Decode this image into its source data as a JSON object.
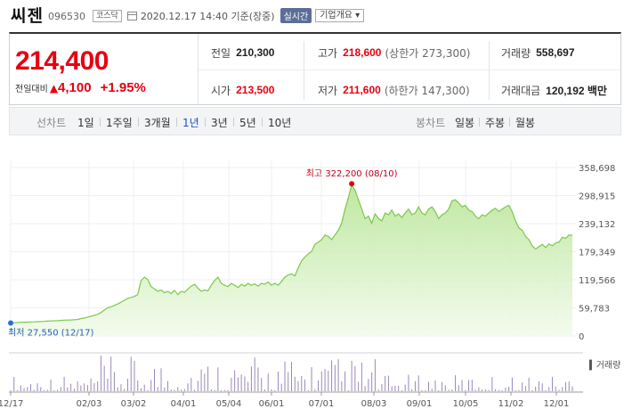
{
  "header": {
    "name": "씨젠",
    "code": "096530",
    "market": "코스닥",
    "date": "2020.12.17 14:40",
    "basis": "기준(장중)",
    "realtime_label": "실시간",
    "corp_label": "기업개요 ▾"
  },
  "summary": {
    "price": "214,400",
    "change_label": "전일대비",
    "change_arrow": "▲",
    "change_value": "4,100",
    "change_pct": "+1.95%",
    "prev_label": "전일",
    "prev_value": "210,300",
    "high_label": "고가",
    "high_value": "218,600",
    "upper_limit": "(상한가 273,300)",
    "volume_label": "거래량",
    "volume_value": "558,697",
    "open_label": "시가",
    "open_value": "213,500",
    "low_label": "저가",
    "low_value": "211,600",
    "lower_limit": "(하한가 147,300)",
    "amount_label": "거래대금",
    "amount_value": "120,192 백만"
  },
  "periods": {
    "line_label": "선차트",
    "items": [
      "1일",
      "1주일",
      "3개월",
      "1년",
      "3년",
      "5년",
      "10년"
    ],
    "active": "1년",
    "candle_label": "봉차트",
    "candles": [
      "일봉",
      "주봉",
      "월봉"
    ]
  },
  "chart_data": {
    "type": "area",
    "x_tick_labels": [
      "12/17",
      "02/03",
      "03/02",
      "04/01",
      "05/04",
      "06/01",
      "07/01",
      "08/03",
      "09/01",
      "10/05",
      "11/02",
      "12/01"
    ],
    "y_tick_labels": [
      "358,698",
      "298,915",
      "239,132",
      "179,349",
      "119,566",
      "59,783",
      "0"
    ],
    "ylim": [
      0,
      358698
    ],
    "high_annotation": "최고 322,200 (08/10)",
    "low_annotation": "최저 27,550 (12/17)",
    "volume_label": "거래량",
    "accent_color": "#7bc94a",
    "up_color": "#e60012",
    "prices": [
      27550,
      28000,
      28500,
      29000,
      29200,
      29500,
      29800,
      30000,
      30300,
      30500,
      31000,
      31500,
      31800,
      32200,
      32500,
      33000,
      33500,
      33800,
      34000,
      34500,
      35000,
      37000,
      38000,
      40000,
      42000,
      44000,
      46000,
      50000,
      55000,
      60000,
      62000,
      65000,
      68000,
      72000,
      76000,
      80000,
      82000,
      84000,
      88000,
      118000,
      125000,
      120000,
      105000,
      100000,
      95000,
      98000,
      92000,
      95000,
      90000,
      97000,
      88000,
      95000,
      93000,
      100000,
      106000,
      110000,
      102000,
      95000,
      98000,
      96000,
      108000,
      118000,
      125000,
      112000,
      108000,
      105000,
      112000,
      108000,
      103000,
      110000,
      106000,
      112000,
      108000,
      111000,
      106000,
      112000,
      110000,
      115000,
      108000,
      112000,
      108000,
      116000,
      125000,
      130000,
      132000,
      128000,
      145000,
      160000,
      168000,
      175000,
      180000,
      195000,
      200000,
      205000,
      215000,
      212000,
      205000,
      215000,
      225000,
      240000,
      270000,
      295000,
      322200,
      310000,
      290000,
      270000,
      250000,
      255000,
      240000,
      260000,
      250000,
      245000,
      262000,
      258000,
      268000,
      255000,
      260000,
      252000,
      262000,
      270000,
      258000,
      262000,
      275000,
      262000,
      258000,
      270000,
      275000,
      265000,
      250000,
      258000,
      262000,
      270000,
      288000,
      290000,
      283000,
      275000,
      278000,
      268000,
      265000,
      255000,
      250000,
      258000,
      255000,
      262000,
      268000,
      272000,
      265000,
      270000,
      275000,
      278000,
      265000,
      245000,
      230000,
      225000,
      212000,
      205000,
      192000,
      185000,
      190000,
      195000,
      188000,
      196000,
      192000,
      198000,
      200000,
      210000,
      208000,
      215000,
      214400
    ]
  }
}
